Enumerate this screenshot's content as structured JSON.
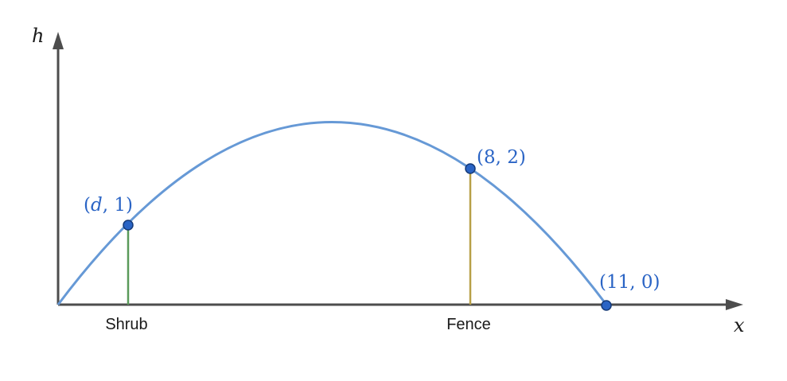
{
  "axes": {
    "x_label": "x",
    "y_label": "h"
  },
  "points": {
    "shrub_point": {
      "prefix": "(",
      "variable": "d",
      "suffix": ", 1)"
    },
    "fence_point": {
      "text": "(8, 2)"
    },
    "landing_point": {
      "text": "(11, 0)"
    }
  },
  "objects": {
    "shrub": "Shrub",
    "fence": "Fence"
  },
  "colors": {
    "curve": "#6699d6",
    "point": "#2a64c5",
    "shrub": "#5a9a5a",
    "fence": "#b8a048",
    "axis": "#4d4d4d"
  }
}
